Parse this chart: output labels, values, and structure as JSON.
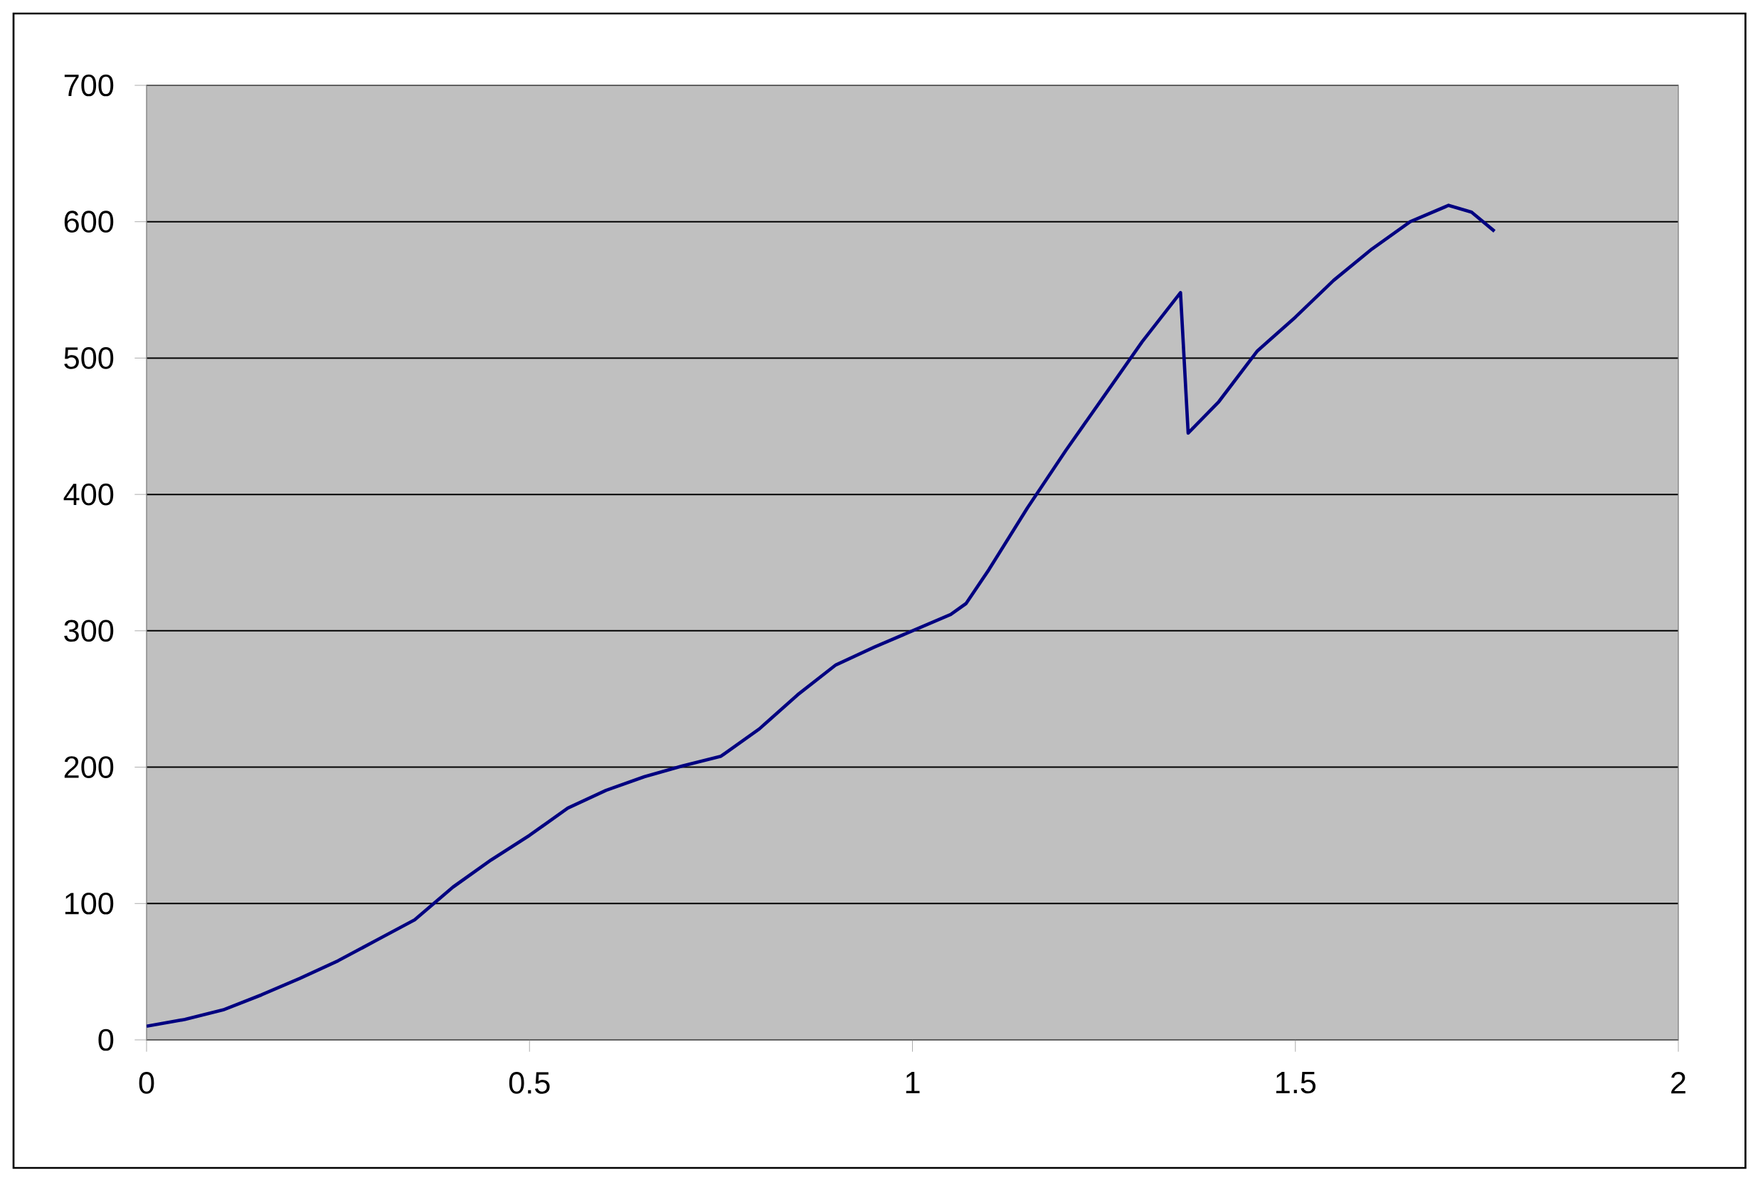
{
  "chart_data": {
    "type": "line",
    "color": "#000080",
    "x": [
      0,
      0.05,
      0.1,
      0.15,
      0.2,
      0.25,
      0.3,
      0.35,
      0.4,
      0.45,
      0.5,
      0.55,
      0.6,
      0.65,
      0.7,
      0.75,
      0.8,
      0.85,
      0.9,
      0.95,
      1.0,
      1.05,
      1.07,
      1.1,
      1.15,
      1.2,
      1.25,
      1.3,
      1.35,
      1.36,
      1.4,
      1.45,
      1.5,
      1.55,
      1.6,
      1.65,
      1.7,
      1.73,
      1.76
    ],
    "values": [
      10,
      15,
      22,
      33,
      45,
      58,
      73,
      88,
      112,
      132,
      150,
      170,
      183,
      193,
      201,
      208,
      228,
      253,
      275,
      288,
      300,
      312,
      320,
      345,
      390,
      432,
      472,
      512,
      548,
      445,
      468,
      505,
      530,
      557,
      580,
      600,
      612,
      607,
      593
    ],
    "xlim": [
      0,
      2
    ],
    "ylim": [
      0,
      700
    ],
    "xticks": [
      0,
      0.5,
      1,
      1.5,
      2
    ],
    "yticks": [
      0,
      100,
      200,
      300,
      400,
      500,
      600,
      700
    ],
    "grid": "y"
  }
}
